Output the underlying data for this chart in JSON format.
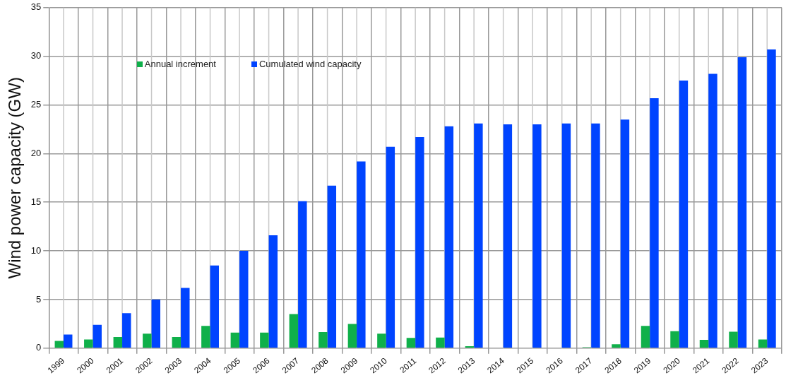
{
  "chart_data": {
    "type": "bar",
    "ylabel": "Wind power capacity (GW)",
    "categories": [
      "1999",
      "2000",
      "2001",
      "2002",
      "2003",
      "2004",
      "2005",
      "2006",
      "2007",
      "2008",
      "2009",
      "2010",
      "2011",
      "2012",
      "2013",
      "2014",
      "2015",
      "2016",
      "2017",
      "2018",
      "2019",
      "2020",
      "2021",
      "2022",
      "2023"
    ],
    "series": [
      {
        "name": "Annual increment",
        "color": "#0fb04a",
        "values": [
          0.75,
          0.9,
          1.15,
          1.5,
          1.15,
          2.3,
          1.6,
          1.6,
          3.5,
          1.65,
          2.5,
          1.5,
          1.05,
          1.1,
          0.2,
          0,
          0,
          0,
          0.1,
          0.4,
          2.3,
          1.75,
          0.85,
          1.7,
          0.9
        ]
      },
      {
        "name": "Cumulated wind capacity",
        "color": "#0044ff",
        "values": [
          1.4,
          2.4,
          3.6,
          5.0,
          6.2,
          8.5,
          10.0,
          11.6,
          15.1,
          16.7,
          19.2,
          20.7,
          21.7,
          22.8,
          23.1,
          23.0,
          23.0,
          23.1,
          23.1,
          23.5,
          25.7,
          27.5,
          28.2,
          29.9,
          30.7
        ]
      }
    ],
    "ylim": [
      0,
      35
    ],
    "yticks": [
      0,
      5,
      10,
      15,
      20,
      25,
      30,
      35
    ],
    "grid": true,
    "legend": "top left"
  }
}
